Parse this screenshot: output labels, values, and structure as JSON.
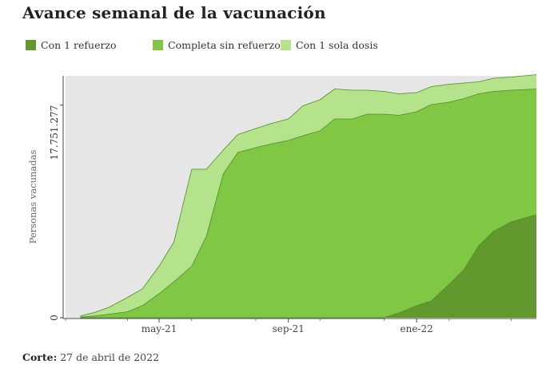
{
  "title": "Avance semanal de la vacunación",
  "footer": {
    "label": "Corte:",
    "value": "27 de abril de 2022"
  },
  "chart_data": {
    "type": "area",
    "stacked": true,
    "title": "Avance semanal de la vacunación",
    "ylabel": "Personas vacunadas",
    "yticks": [
      {
        "value": 0,
        "label": "0"
      },
      {
        "value": 17751277,
        "label": "17.751.277"
      }
    ],
    "ylim": [
      0,
      20200000
    ],
    "x_unit": "week",
    "xlim": [
      "2021-02-01",
      "2022-04-25"
    ],
    "xticks": [
      {
        "date": "2021-05-01",
        "label": "may-21"
      },
      {
        "date": "2021-09-01",
        "label": "sep-21"
      },
      {
        "date": "2022-01-01",
        "label": "ene-22"
      }
    ],
    "grid": false,
    "legend_position": "top",
    "background": "#e6e6e6",
    "x": [
      "2021-02-15",
      "2021-03-01",
      "2021-03-15",
      "2021-04-01",
      "2021-04-15",
      "2021-05-01",
      "2021-05-15",
      "2021-06-01",
      "2021-06-15",
      "2021-07-01",
      "2021-07-15",
      "2021-08-01",
      "2021-08-15",
      "2021-09-01",
      "2021-09-15",
      "2021-10-01",
      "2021-10-15",
      "2021-11-01",
      "2021-11-15",
      "2021-12-01",
      "2021-12-15",
      "2022-01-01",
      "2022-01-15",
      "2022-02-01",
      "2022-02-15",
      "2022-03-01",
      "2022-03-15",
      "2022-04-01",
      "2022-04-25"
    ],
    "series": [
      {
        "name": "Con 1 refuerzo",
        "color": "#62992f",
        "values": [
          0,
          0,
          0,
          0,
          0,
          0,
          0,
          0,
          0,
          0,
          0,
          0,
          0,
          0,
          0,
          0,
          0,
          0,
          0,
          0,
          0.4,
          1.0,
          1.4,
          2.8,
          4.0,
          6.0,
          7.2,
          8.0,
          8.6
        ]
      },
      {
        "name": "Completa sin refuerzo",
        "color": "#80c843",
        "values": [
          0.05,
          0.15,
          0.3,
          0.5,
          1.0,
          2.0,
          3.0,
          4.3,
          6.8,
          12.0,
          13.8,
          14.2,
          14.5,
          14.8,
          15.2,
          15.6,
          16.6,
          16.6,
          17.0,
          17.0,
          16.5,
          16.2,
          16.4,
          15.2,
          14.3,
          12.7,
          11.7,
          11.0,
          10.5
        ]
      },
      {
        "name": "Con 1 sola dosis",
        "color": "#b5e38c",
        "values": [
          0.1,
          0.3,
          0.6,
          1.2,
          1.4,
          2.3,
          3.3,
          8.1,
          5.6,
          2.0,
          1.5,
          1.6,
          1.7,
          1.8,
          2.5,
          2.6,
          2.5,
          2.4,
          2.0,
          1.9,
          1.8,
          1.6,
          1.5,
          1.5,
          1.3,
          1.0,
          1.1,
          1.1,
          1.2
        ]
      }
    ],
    "values_unit": "millones de personas (aprox.)"
  }
}
